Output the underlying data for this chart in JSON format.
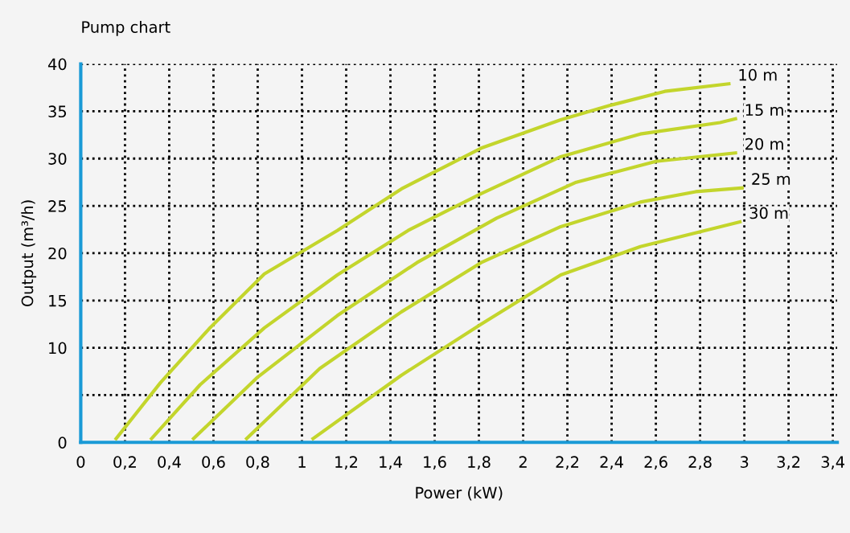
{
  "chart_data": {
    "type": "line",
    "title": "Pump chart",
    "xlabel": "Power (kW)",
    "ylabel": "Output (m³/h)",
    "xlim": [
      0,
      3.42
    ],
    "ylim": [
      0,
      40
    ],
    "xticks": [
      0,
      {
        "value": 0.2,
        "label": "0,2"
      },
      {
        "value": 0.4,
        "label": "0,4"
      },
      {
        "value": 0.6,
        "label": "0,6"
      },
      {
        "value": 0.8,
        "label": "0,8"
      },
      1,
      {
        "value": 1.2,
        "label": "1,2"
      },
      {
        "value": 1.4,
        "label": "1,4"
      },
      {
        "value": 1.6,
        "label": "1,6"
      },
      {
        "value": 1.8,
        "label": "1,8"
      },
      2,
      {
        "value": 2.2,
        "label": "2,2"
      },
      {
        "value": 2.4,
        "label": "2,4"
      },
      {
        "value": 2.6,
        "label": "2,6"
      },
      {
        "value": 2.8,
        "label": "2,8"
      },
      3,
      {
        "value": 3.2,
        "label": "3,2"
      },
      {
        "value": 3.4,
        "label": "3,4"
      }
    ],
    "yticks": [
      0,
      {
        "value": 5,
        "label": null
      },
      10,
      15,
      20,
      25,
      30,
      35,
      40
    ],
    "grid": true,
    "legend": false,
    "marker": "none",
    "line_style": "solid",
    "series": [
      {
        "name": "10 m",
        "color": "#c3d52c",
        "x": [
          0.16,
          0.36,
          0.58,
          0.83,
          1.16,
          1.45,
          1.81,
          2.17,
          2.39,
          2.64,
          2.93
        ],
        "values": [
          0.4,
          6.3,
          12.0,
          17.8,
          22.4,
          26.8,
          31.1,
          34.1,
          35.6,
          37.1,
          37.9
        ]
      },
      {
        "name": "15 m",
        "color": "#c3d52c",
        "x": [
          0.32,
          0.54,
          0.83,
          1.16,
          1.48,
          1.81,
          2.17,
          2.53,
          2.89,
          2.96
        ],
        "values": [
          0.4,
          6.1,
          12.1,
          17.7,
          22.4,
          26.3,
          30.2,
          32.6,
          33.8,
          34.2
        ]
      },
      {
        "name": "20 m",
        "color": "#c3d52c",
        "x": [
          0.51,
          0.8,
          1.16,
          1.52,
          1.88,
          2.24,
          2.6,
          2.96
        ],
        "values": [
          0.4,
          6.9,
          13.4,
          19.0,
          23.7,
          27.5,
          29.7,
          30.6
        ]
      },
      {
        "name": "25 m",
        "color": "#c3d52c",
        "x": [
          0.75,
          1.08,
          1.45,
          1.81,
          2.17,
          2.53,
          2.78,
          2.99
        ],
        "values": [
          0.4,
          7.8,
          13.8,
          19.0,
          22.8,
          25.4,
          26.5,
          26.9
        ]
      },
      {
        "name": "30 m",
        "color": "#c3d52c",
        "x": [
          1.05,
          1.45,
          1.81,
          2.17,
          2.53,
          2.98
        ],
        "values": [
          0.4,
          7.1,
          12.5,
          17.7,
          20.7,
          23.3
        ]
      }
    ]
  }
}
